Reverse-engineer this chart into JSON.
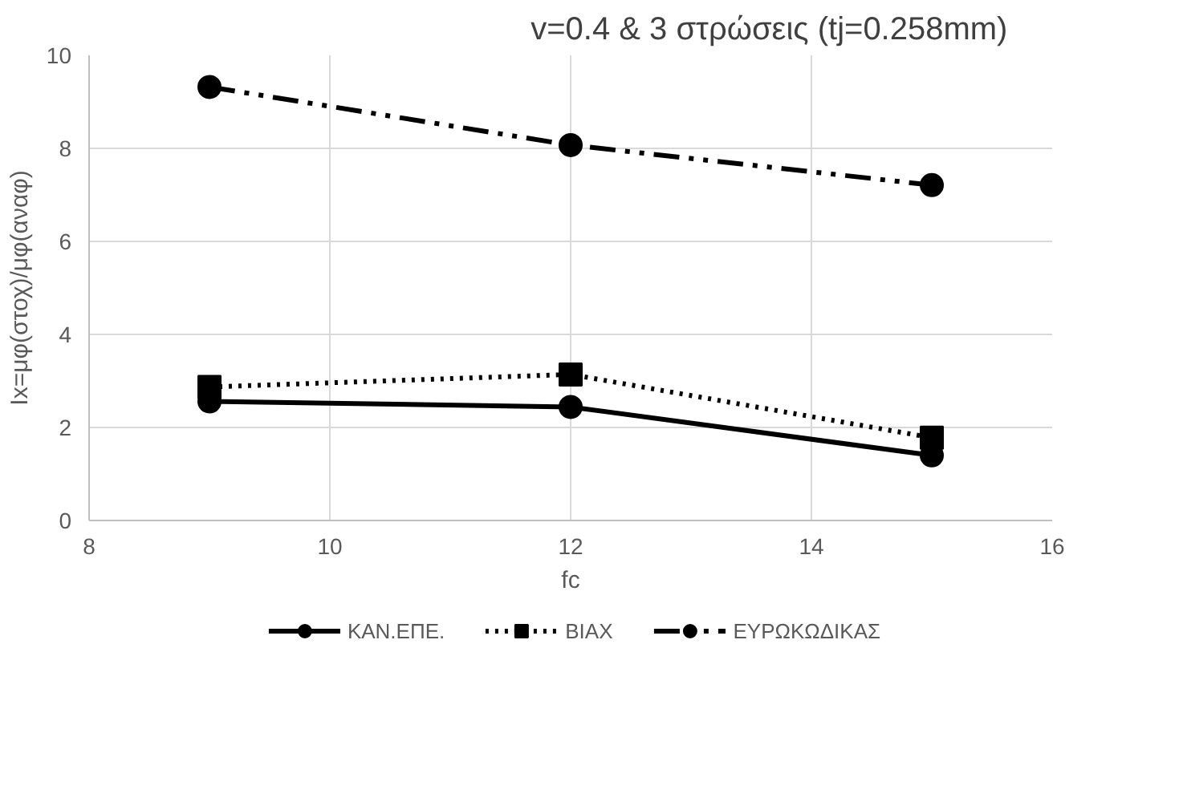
{
  "chart_data": {
    "type": "line",
    "title": "v=0.4    &   3 στρώσεις (tj=0.258mm)",
    "xlabel": "fc",
    "ylabel": "Ix=μφ(στοχ)/μφ(αναφ)",
    "x": [
      9,
      12,
      15
    ],
    "xlim": [
      8,
      16
    ],
    "xticks": [
      8,
      10,
      12,
      14,
      16
    ],
    "ylim": [
      0,
      10
    ],
    "yticks": [
      0,
      2,
      4,
      6,
      8,
      10
    ],
    "grid": true,
    "legend": "bottom",
    "series": [
      {
        "name": "ΚΑΝ.ΕΠΕ.",
        "color": "#000000",
        "values": [
          2.56,
          2.44,
          1.4
        ],
        "marker": "circle",
        "line_style": "solid"
      },
      {
        "name": "ΒΙΑΧ",
        "color": "#000000",
        "values": [
          2.87,
          3.14,
          1.78
        ],
        "marker": "square",
        "line_style": "dotted"
      },
      {
        "name": "ΕΥΡΩΚΩΔΙΚΑΣ",
        "color": "#000000",
        "values": [
          9.32,
          8.07,
          7.21
        ],
        "marker": "circle",
        "line_style": "dashdot"
      }
    ]
  }
}
